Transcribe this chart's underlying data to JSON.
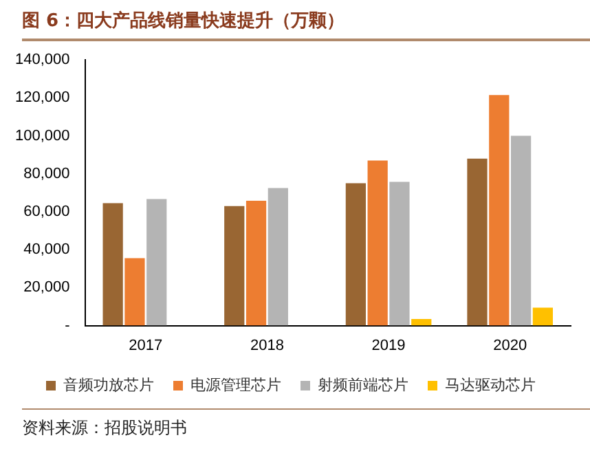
{
  "chart_data": {
    "type": "bar",
    "title": "图 6：四大产品线销量快速提升（万颗）",
    "categories": [
      "2017",
      "2018",
      "2019",
      "2020"
    ],
    "series": [
      {
        "name": "音频功放芯片",
        "color": "#996633",
        "values": [
          64500,
          63000,
          75000,
          88000
        ]
      },
      {
        "name": "电源管理芯片",
        "color": "#ed7d31",
        "values": [
          35500,
          65800,
          87000,
          121500
        ]
      },
      {
        "name": "射频前端芯片",
        "color": "#b4b4b4",
        "values": [
          66700,
          72500,
          75800,
          100000
        ]
      },
      {
        "name": "马达驱动芯片",
        "color": "#ffc000",
        "values": [
          null,
          null,
          3500,
          9500
        ]
      }
    ],
    "ylim": [
      0,
      140000
    ],
    "yticks": [
      {
        "value": 0,
        "label": "-"
      },
      {
        "value": 20000,
        "label": "20,000"
      },
      {
        "value": 40000,
        "label": "40,000"
      },
      {
        "value": 60000,
        "label": "60,000"
      },
      {
        "value": 80000,
        "label": "80,000"
      },
      {
        "value": 100000,
        "label": "100,000"
      },
      {
        "value": 120000,
        "label": "120,000"
      },
      {
        "value": 140000,
        "label": "140,000"
      }
    ],
    "grid": false,
    "legend": "bottom",
    "annotations": [
      "资料来源：招股说明书"
    ]
  }
}
